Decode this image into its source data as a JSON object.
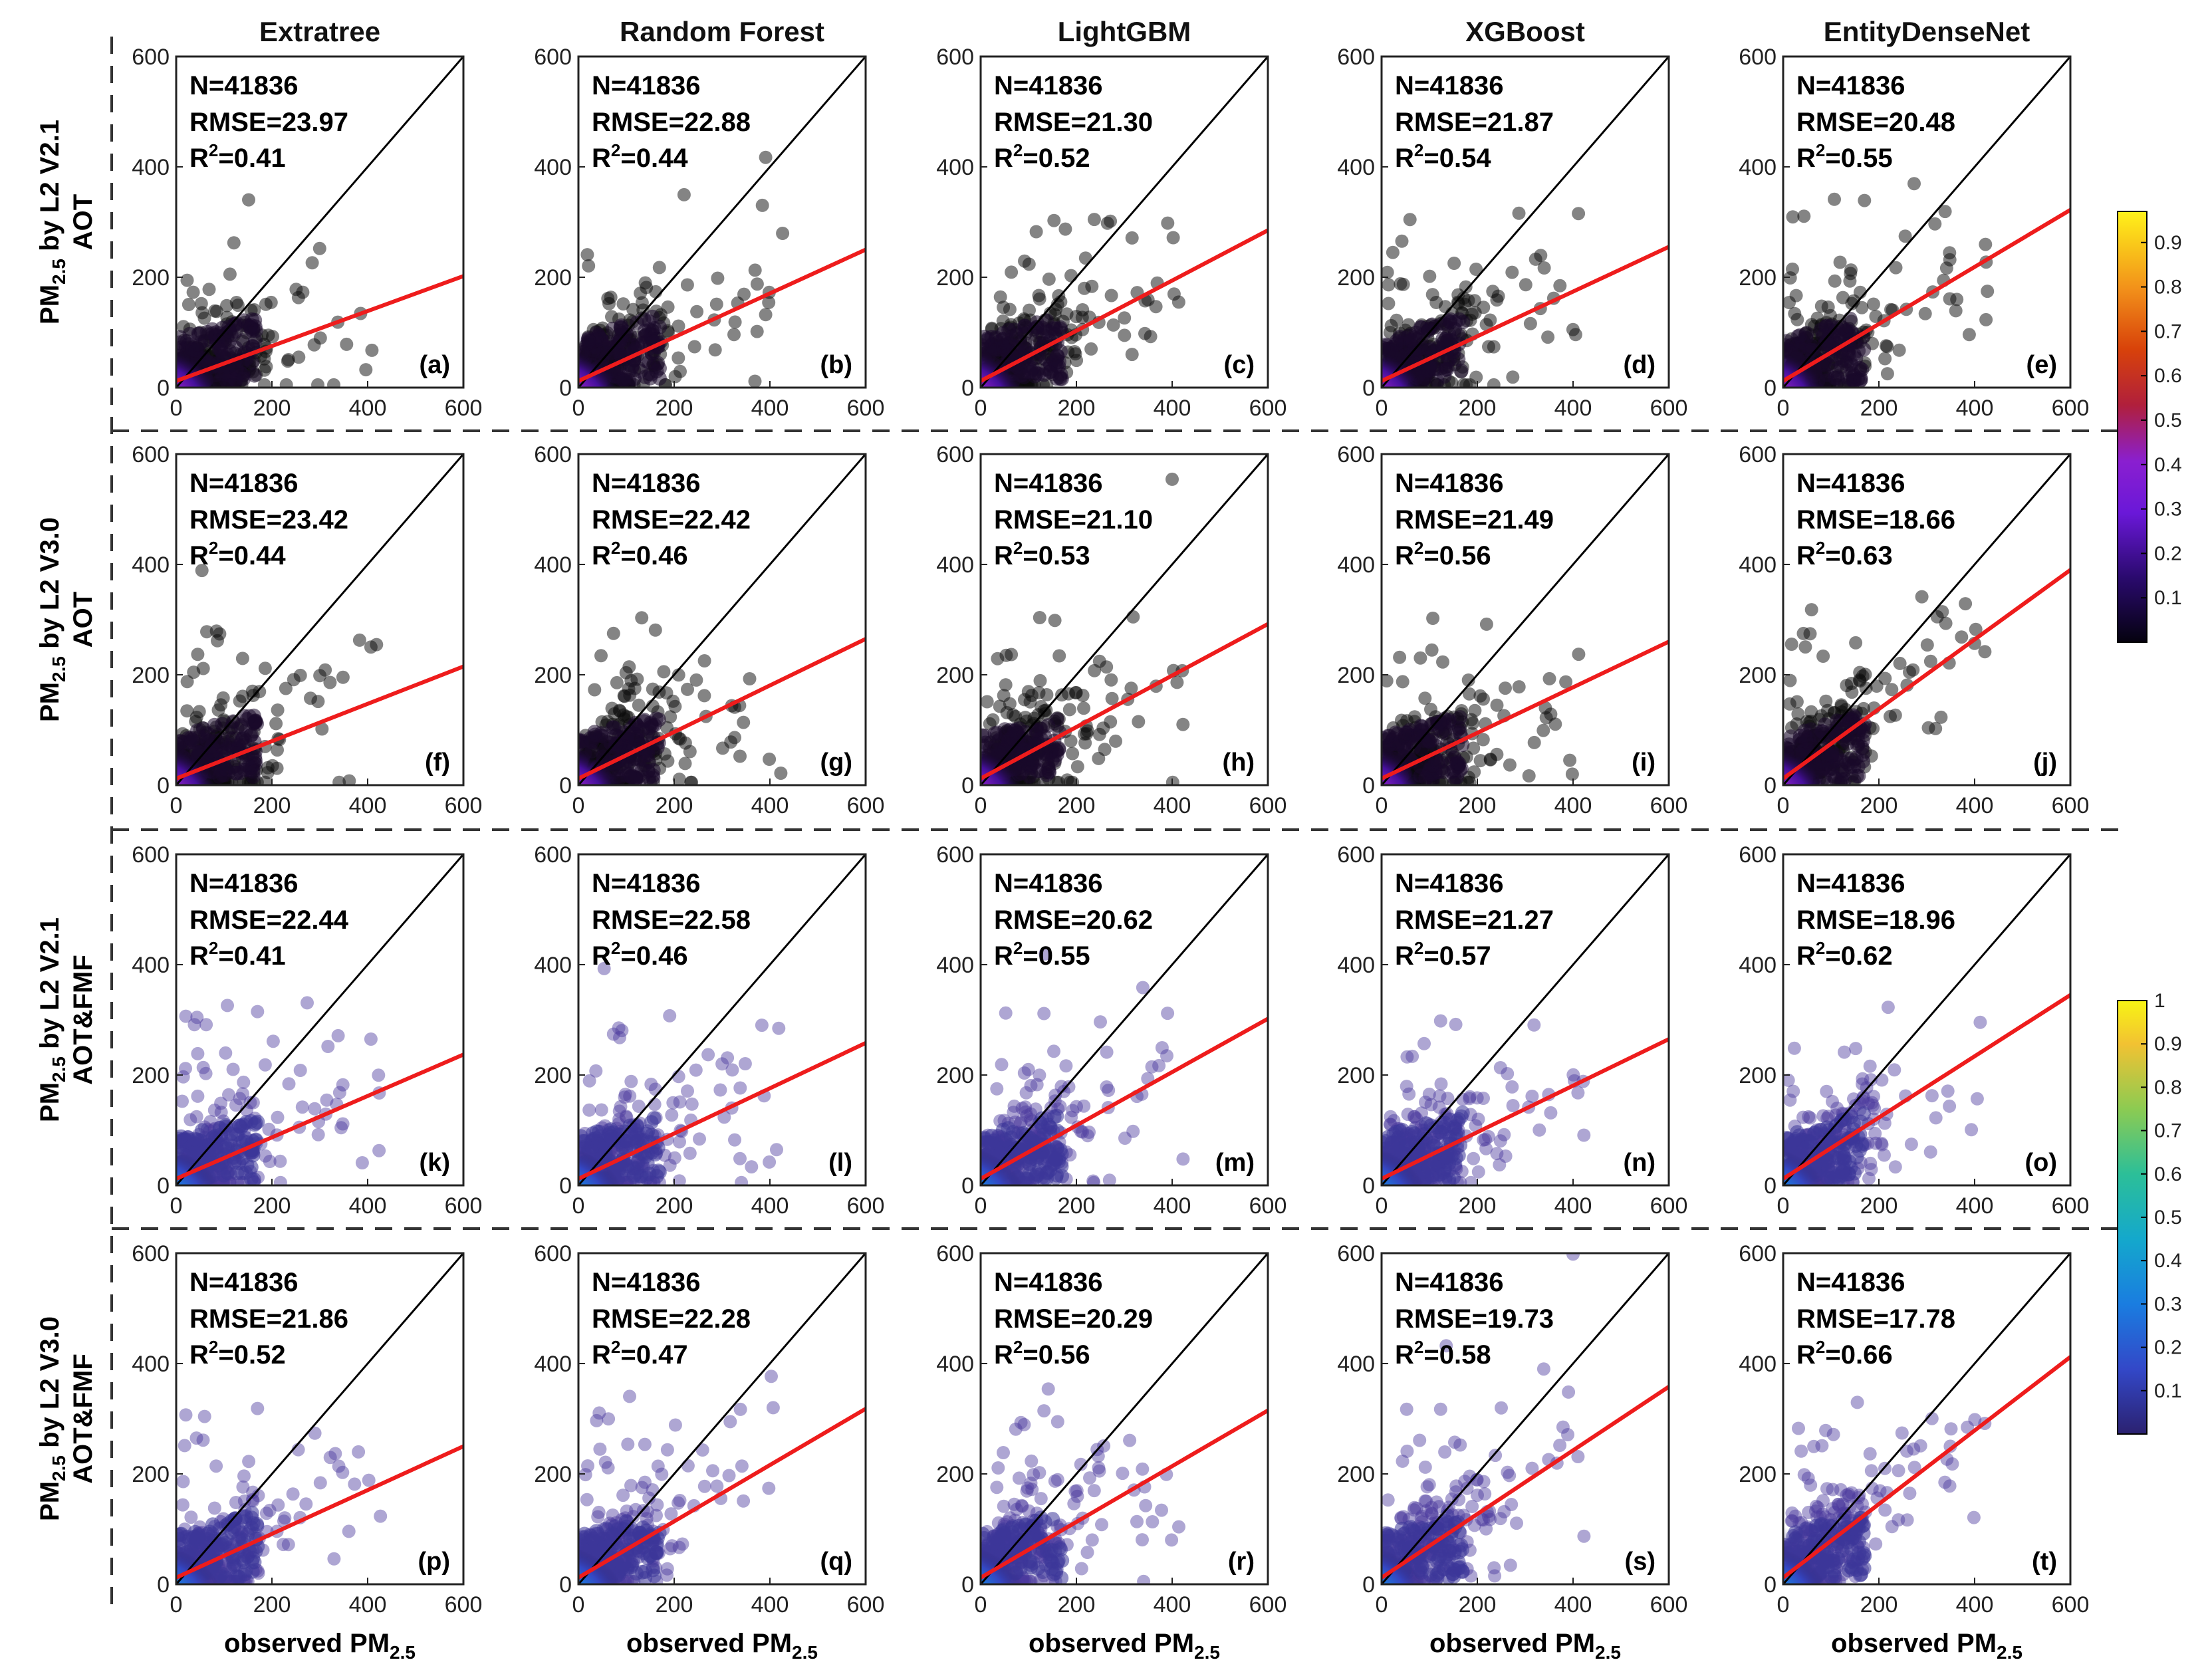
{
  "chart_data": {
    "type": "scatter",
    "columns": [
      "Extratree",
      "Random Forest",
      "LightGBM",
      "XGBoost",
      "EntityDenseNet"
    ],
    "row_labels": [
      {
        "l1": "PM",
        "sub": "2.5",
        "l1b": " by L2 V2.1",
        "l2": "AOT"
      },
      {
        "l1": "PM",
        "sub": "2.5",
        "l1b": " by L2 V3.0",
        "l2": "AOT"
      },
      {
        "l1": "PM",
        "sub": "2.5",
        "l1b": " by L2 V2.1",
        "l2": "AOT&FMF"
      },
      {
        "l1": "PM",
        "sub": "2.5",
        "l1b": " by L2 V3.0",
        "l2": "AOT&FMF"
      }
    ],
    "xlabel": {
      "main": "observed PM",
      "sub": "2.5"
    },
    "xlim": [
      0,
      600
    ],
    "ylim": [
      0,
      600
    ],
    "xticks": [
      0,
      200,
      400,
      600
    ],
    "yticks": [
      0,
      200,
      400,
      600
    ],
    "panels": [
      {
        "label": "(a)",
        "N": "N=41836",
        "RMSE": "RMSE=23.97",
        "R2": "0.41",
        "fit_end": 202
      },
      {
        "label": "(b)",
        "N": "N=41836",
        "RMSE": "RMSE=22.88",
        "R2": "0.44",
        "fit_end": 250
      },
      {
        "label": "(c)",
        "N": "N=41836",
        "RMSE": "RMSE=21.30",
        "R2": "0.52",
        "fit_end": 285
      },
      {
        "label": "(d)",
        "N": "N=41836",
        "RMSE": "RMSE=21.87",
        "R2": "0.54",
        "fit_end": 255
      },
      {
        "label": "(e)",
        "N": "N=41836",
        "RMSE": "RMSE=20.48",
        "R2": "0.55",
        "fit_end": 322
      },
      {
        "label": "(f)",
        "N": "N=41836",
        "RMSE": "RMSE=23.42",
        "R2": "0.44",
        "fit_end": 215
      },
      {
        "label": "(g)",
        "N": "N=41836",
        "RMSE": "RMSE=22.42",
        "R2": "0.46",
        "fit_end": 265
      },
      {
        "label": "(h)",
        "N": "N=41836",
        "RMSE": "RMSE=21.10",
        "R2": "0.53",
        "fit_end": 292
      },
      {
        "label": "(i)",
        "N": "N=41836",
        "RMSE": "RMSE=21.49",
        "R2": "0.56",
        "fit_end": 260
      },
      {
        "label": "(j)",
        "N": "N=41836",
        "RMSE": "RMSE=18.66",
        "R2": "0.63",
        "fit_end": 390
      },
      {
        "label": "(k)",
        "N": "N=41836",
        "RMSE": "RMSE=22.44",
        "R2": "0.41",
        "fit_end": 237
      },
      {
        "label": "(l)",
        "N": "N=41836",
        "RMSE": "RMSE=22.58",
        "R2": "0.46",
        "fit_end": 258
      },
      {
        "label": "(m)",
        "N": "N=41836",
        "RMSE": "RMSE=20.62",
        "R2": "0.55",
        "fit_end": 302
      },
      {
        "label": "(n)",
        "N": "N=41836",
        "RMSE": "RMSE=21.27",
        "R2": "0.57",
        "fit_end": 265
      },
      {
        "label": "(o)",
        "N": "N=41836",
        "RMSE": "RMSE=18.96",
        "R2": "0.62",
        "fit_end": 345
      },
      {
        "label": "(p)",
        "N": "N=41836",
        "RMSE": "RMSE=21.86",
        "R2": "0.52",
        "fit_end": 250
      },
      {
        "label": "(q)",
        "N": "N=41836",
        "RMSE": "RMSE=22.28",
        "R2": "0.47",
        "fit_end": 318
      },
      {
        "label": "(r)",
        "N": "N=41836",
        "RMSE": "RMSE=20.29",
        "R2": "0.56",
        "fit_end": 315
      },
      {
        "label": "(s)",
        "N": "N=41836",
        "RMSE": "RMSE=19.73",
        "R2": "0.58",
        "fit_end": 358
      },
      {
        "label": "(t)",
        "N": "N=41836",
        "RMSE": "RMSE=17.78",
        "R2": "0.66",
        "fit_end": 412
      }
    ],
    "fit_start": 12,
    "reference_line": "1:1",
    "colorbars": [
      {
        "name": "upper",
        "colormap": "plasma-like",
        "ticks": [
          "0.1",
          "0.2",
          "0.3",
          "0.4",
          "0.5",
          "0.6",
          "0.7",
          "0.8",
          "0.9"
        ],
        "range": [
          0.05,
          0.97
        ]
      },
      {
        "name": "lower",
        "colormap": "parula-like",
        "ticks": [
          "0.1",
          "0.2",
          "0.3",
          "0.4",
          "0.5",
          "0.6",
          "0.7",
          "0.8",
          "0.9",
          "1"
        ],
        "range": [
          0.05,
          1.0
        ]
      }
    ],
    "colors": {
      "fit_line": "#ee1c1c",
      "reference": "#000000",
      "scatter_dark": "#0a0a0a",
      "scatter_purple": "#4b3a9e"
    }
  }
}
